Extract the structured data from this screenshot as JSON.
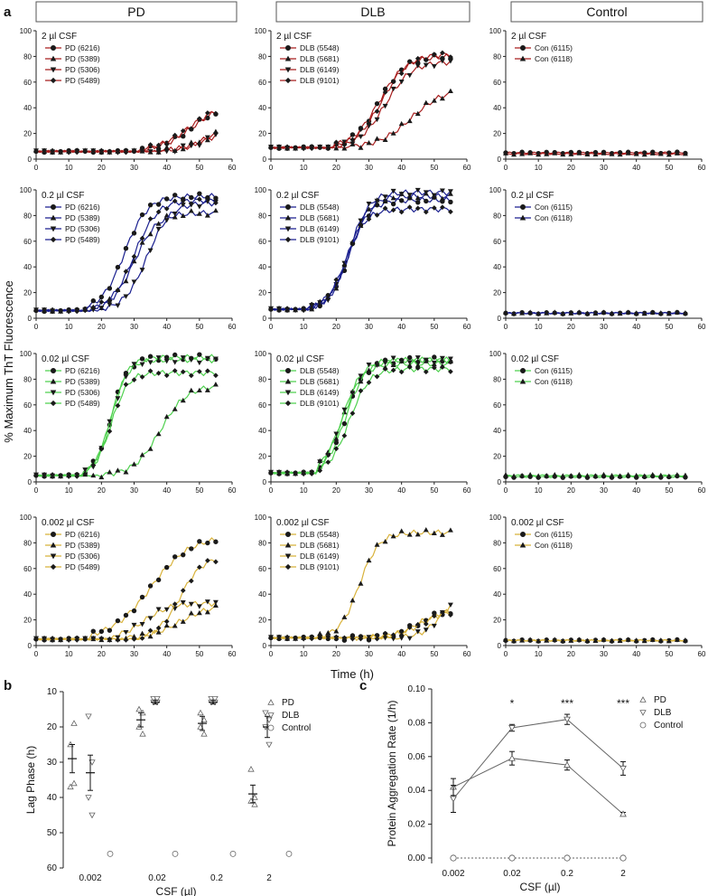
{
  "figure": {
    "panel_labels": {
      "a": "a",
      "b": "b",
      "c": "c"
    },
    "column_headers": [
      "PD",
      "DLB",
      "Control"
    ],
    "ylabel_a": "% Maximum ThT Fluorescence",
    "xlabel_a": "Time (h)",
    "row_colors": [
      "#a81e1e",
      "#1a1f8f",
      "#4fd14f",
      "#d8b23a"
    ],
    "row_titles": [
      "2 µl CSF",
      "0.2 µl CSF",
      "0.02 µl CSF",
      "0.002 µl CSF"
    ]
  },
  "chart_data": [
    {
      "type": "line",
      "title": "Panel a: ThT aggregation kinetics (4 CSF doses x 3 groups)",
      "xlim": [
        0,
        60
      ],
      "ylim": [
        0,
        100
      ],
      "xticks": [
        0,
        10,
        20,
        30,
        40,
        50,
        60
      ],
      "yticks": [
        0,
        20,
        40,
        60,
        80,
        100
      ],
      "xlabel": "Time (h)",
      "ylabel": "% Maximum ThT Fluorescence",
      "groups": [
        {
          "name": "PD",
          "legend": [
            "PD (6216)",
            "PD (5389)",
            "PD (5306)",
            "PD (5489)"
          ]
        },
        {
          "name": "DLB",
          "legend": [
            "DLB (5548)",
            "DLB (5681)",
            "DLB (6149)",
            "DLB (9101)"
          ]
        },
        {
          "name": "Control",
          "legend": [
            "Con (6115)",
            "Con (6118)"
          ]
        }
      ],
      "markers": [
        "circle",
        "triangle-up",
        "triangle-down",
        "diamond"
      ],
      "panels": [
        {
          "row": 0,
          "col": 0,
          "series": [
            {
              "name": "PD (6216)",
              "base": 6,
              "onset": 32,
              "plateau": 44,
              "half": 48,
              "k": 5
            },
            {
              "name": "PD (5389)",
              "base": 6,
              "onset": 40,
              "plateau": 26,
              "half": 52,
              "k": 4
            },
            {
              "name": "PD (5306)",
              "base": 6,
              "onset": 40,
              "plateau": 24,
              "half": 52,
              "k": 4
            },
            {
              "name": "PD (5489)",
              "base": 6,
              "onset": 32,
              "plateau": 44,
              "half": 47,
              "k": 5
            }
          ]
        },
        {
          "row": 0,
          "col": 1,
          "series": [
            {
              "name": "DLB (5548)",
              "base": 9,
              "onset": 18,
              "plateau": 80,
              "half": 33,
              "k": 4
            },
            {
              "name": "DLB (5681)",
              "base": 9,
              "onset": 25,
              "plateau": 55,
              "half": 43,
              "k": 5
            },
            {
              "name": "DLB (6149)",
              "base": 9,
              "onset": 19,
              "plateau": 76,
              "half": 35,
              "k": 4
            },
            {
              "name": "DLB (9101)",
              "base": 9,
              "onset": 18,
              "plateau": 82,
              "half": 34,
              "k": 4
            }
          ]
        },
        {
          "row": 0,
          "col": 2,
          "series": [
            {
              "name": "Con (6115)",
              "base": 5,
              "flat": true
            },
            {
              "name": "Con (6118)",
              "base": 4,
              "flat": true
            }
          ]
        },
        {
          "row": 1,
          "col": 0,
          "series": [
            {
              "name": "PD (6216)",
              "base": 6,
              "onset": 14,
              "plateau": 95,
              "half": 27,
              "k": 3.5
            },
            {
              "name": "PD (5389)",
              "base": 6,
              "onset": 17,
              "plateau": 82,
              "half": 30,
              "k": 3.5
            },
            {
              "name": "PD (5306)",
              "base": 6,
              "onset": 20,
              "plateau": 90,
              "half": 34,
              "k": 3.5
            },
            {
              "name": "PD (5489)",
              "base": 6,
              "onset": 16,
              "plateau": 92,
              "half": 30,
              "k": 3.5
            }
          ]
        },
        {
          "row": 1,
          "col": 1,
          "series": [
            {
              "name": "DLB (5548)",
              "base": 7,
              "onset": 12,
              "plateau": 92,
              "half": 24,
              "k": 3
            },
            {
              "name": "DLB (5681)",
              "base": 7,
              "onset": 12,
              "plateau": 95,
              "half": 24,
              "k": 3
            },
            {
              "name": "DLB (6149)",
              "base": 7,
              "onset": 12,
              "plateau": 98,
              "half": 24,
              "k": 3
            },
            {
              "name": "DLB (9101)",
              "base": 7,
              "onset": 12,
              "plateau": 85,
              "half": 23,
              "k": 3
            }
          ]
        },
        {
          "row": 1,
          "col": 2,
          "series": [
            {
              "name": "Con (6115)",
              "base": 4,
              "flat": true
            },
            {
              "name": "Con (6118)",
              "base": 4,
              "flat": true
            }
          ]
        },
        {
          "row": 2,
          "col": 0,
          "series": [
            {
              "name": "PD (6216)",
              "base": 5,
              "onset": 15,
              "plateau": 97,
              "half": 23,
              "k": 2.5
            },
            {
              "name": "PD (5389)",
              "base": 5,
              "onset": 20,
              "plateau": 75,
              "half": 38,
              "k": 4
            },
            {
              "name": "PD (5306)",
              "base": 5,
              "onset": 15,
              "plateau": 95,
              "half": 23,
              "k": 2.5
            },
            {
              "name": "PD (5489)",
              "base": 5,
              "onset": 15,
              "plateau": 85,
              "half": 23,
              "k": 2.5
            }
          ]
        },
        {
          "row": 2,
          "col": 1,
          "series": [
            {
              "name": "DLB (5548)",
              "base": 7,
              "onset": 14,
              "plateau": 95,
              "half": 23,
              "k": 3
            },
            {
              "name": "DLB (5681)",
              "base": 7,
              "onset": 14,
              "plateau": 92,
              "half": 22,
              "k": 3
            },
            {
              "name": "DLB (6149)",
              "base": 7,
              "onset": 14,
              "plateau": 95,
              "half": 22,
              "k": 3
            },
            {
              "name": "DLB (9101)",
              "base": 7,
              "onset": 14,
              "plateau": 88,
              "half": 24,
              "k": 3
            }
          ]
        },
        {
          "row": 2,
          "col": 2,
          "series": [
            {
              "name": "Con (6115)",
              "base": 4,
              "flat": true
            },
            {
              "name": "Con (6118)",
              "base": 5,
              "flat": true
            }
          ]
        },
        {
          "row": 3,
          "col": 0,
          "series": [
            {
              "name": "PD (6216)",
              "base": 5,
              "onset": 17,
              "plateau": 85,
              "half": 35,
              "k": 6
            },
            {
              "name": "PD (5389)",
              "base": 5,
              "onset": 28,
              "plateau": 32,
              "half": 44,
              "k": 5
            },
            {
              "name": "PD (5306)",
              "base": 5,
              "onset": 23,
              "plateau": 33,
              "half": 33,
              "k": 4
            },
            {
              "name": "PD (5489)",
              "base": 5,
              "onset": 33,
              "plateau": 70,
              "half": 44,
              "k": 3.5
            }
          ]
        },
        {
          "row": 3,
          "col": 1,
          "series": [
            {
              "name": "DLB (5548)",
              "base": 6,
              "onset": 22,
              "plateau": 28,
              "half": 45,
              "k": 4
            },
            {
              "name": "DLB (5681)",
              "base": 6,
              "onset": 15,
              "plateau": 88,
              "half": 27,
              "k": 3
            },
            {
              "name": "DLB (6149)",
              "base": 6,
              "onset": 38,
              "plateau": 40,
              "half": 52,
              "k": 3
            },
            {
              "name": "DLB (9101)",
              "base": 6,
              "onset": 30,
              "plateau": 28,
              "half": 46,
              "k": 4
            }
          ]
        },
        {
          "row": 3,
          "col": 2,
          "series": [
            {
              "name": "Con (6115)",
              "base": 4,
              "flat": true
            },
            {
              "name": "Con (6118)",
              "base": 4,
              "flat": true
            }
          ]
        }
      ]
    },
    {
      "type": "scatter",
      "title": "Panel b: Lag Phase",
      "xlabel": "CSF (µl)",
      "ylabel": "Lag Phase (h)",
      "categories": [
        "0.002",
        "0.02",
        "0.2",
        "2"
      ],
      "ylim": [
        60,
        10
      ],
      "yticks": [
        10,
        20,
        30,
        40,
        50,
        60
      ],
      "legend": [
        "PD",
        "DLB",
        "Control"
      ],
      "series": [
        {
          "name": "PD",
          "marker": "triangle-up",
          "values": [
            [
              25,
              36,
              37,
              19
            ],
            [
              15,
              16,
              20,
              22
            ],
            [
              16,
              18,
              20,
              22
            ],
            [
              32,
              40,
              41,
              42
            ]
          ],
          "mean": [
            29,
            18,
            19,
            39
          ],
          "sem": [
            4,
            2,
            2,
            2.5
          ]
        },
        {
          "name": "DLB",
          "marker": "triangle-down",
          "values": [
            [
              17,
              30,
              40,
              45
            ],
            [
              12,
              12,
              13,
              13
            ],
            [
              12,
              12,
              13,
              13
            ],
            [
              16,
              18,
              20,
              25
            ]
          ],
          "mean": [
            33,
            13,
            13,
            20
          ],
          "sem": [
            5,
            0.5,
            0.5,
            3
          ]
        },
        {
          "name": "Control",
          "marker": "circle-open",
          "values": [
            [
              56
            ],
            [
              56
            ],
            [
              56
            ],
            [
              56
            ]
          ]
        }
      ]
    },
    {
      "type": "line",
      "title": "Panel c: Protein Aggregation Rate",
      "xlabel": "CSF (µl)",
      "ylabel": "Protein Aggregation Rate (1/h)",
      "categories": [
        "0.002",
        "0.02",
        "0.2",
        "2"
      ],
      "ylim": [
        0,
        0.1
      ],
      "yticks": [
        0.0,
        0.02,
        0.04,
        0.06,
        0.08,
        0.1
      ],
      "ytick_labels": [
        "0.00",
        "0.02",
        "0.04",
        "0.06",
        "0.08",
        "0.10"
      ],
      "legend": [
        "PD",
        "DLB",
        "Control"
      ],
      "significance": [
        "",
        "*",
        "***",
        "***"
      ],
      "series": [
        {
          "name": "PD",
          "marker": "triangle-up",
          "values": [
            0.042,
            0.059,
            0.055,
            0.026
          ],
          "sem": [
            0.005,
            0.004,
            0.003,
            0.001
          ]
        },
        {
          "name": "DLB",
          "marker": "triangle-down",
          "values": [
            0.035,
            0.077,
            0.082,
            0.053
          ],
          "sem": [
            0.008,
            0.002,
            0.003,
            0.004
          ]
        },
        {
          "name": "Control",
          "marker": "circle-open",
          "values": [
            0.0,
            0.0,
            0.0,
            0.0
          ],
          "dotted": true
        }
      ]
    }
  ]
}
